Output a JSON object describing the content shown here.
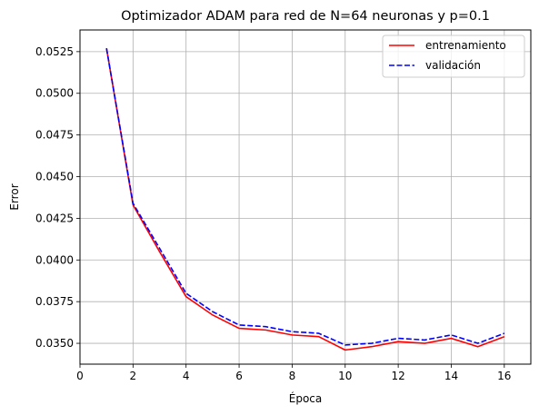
{
  "chart_data": {
    "type": "line",
    "title": "Optimizador ADAM para red de N=64 neuronas y p=0.1",
    "xlabel": "Época",
    "ylabel": "Error",
    "xlim": [
      0,
      17
    ],
    "ylim": [
      0.03375,
      0.0538
    ],
    "xticks": [
      0,
      2,
      4,
      6,
      8,
      10,
      12,
      14,
      16
    ],
    "xtick_labels": [
      "0",
      "2",
      "4",
      "6",
      "8",
      "10",
      "12",
      "14",
      "16"
    ],
    "yticks": [
      0.035,
      0.0375,
      0.04,
      0.0425,
      0.045,
      0.0475,
      0.05,
      0.0525
    ],
    "ytick_labels": [
      "0.0350",
      "0.0375",
      "0.0400",
      "0.0425",
      "0.0450",
      "0.0475",
      "0.0500",
      "0.0525"
    ],
    "grid": true,
    "legend_position": "top-right",
    "x": [
      1,
      2,
      3,
      4,
      5,
      6,
      7,
      8,
      9,
      10,
      11,
      12,
      13,
      14,
      15,
      16
    ],
    "series": [
      {
        "name": "entrenamiento",
        "color": "#ff0000",
        "style": "solid",
        "values": [
          0.0527,
          0.0433,
          0.0405,
          0.0378,
          0.0367,
          0.0359,
          0.0358,
          0.0355,
          0.0354,
          0.0346,
          0.0348,
          0.0351,
          0.035,
          0.0353,
          0.0348,
          0.0354
        ]
      },
      {
        "name": "validación",
        "color": "#0000ff",
        "style": "dashed",
        "values": [
          0.0527,
          0.0434,
          0.0407,
          0.038,
          0.0369,
          0.0361,
          0.036,
          0.0357,
          0.0356,
          0.0349,
          0.035,
          0.0353,
          0.0352,
          0.0355,
          0.035,
          0.0356
        ]
      }
    ]
  }
}
